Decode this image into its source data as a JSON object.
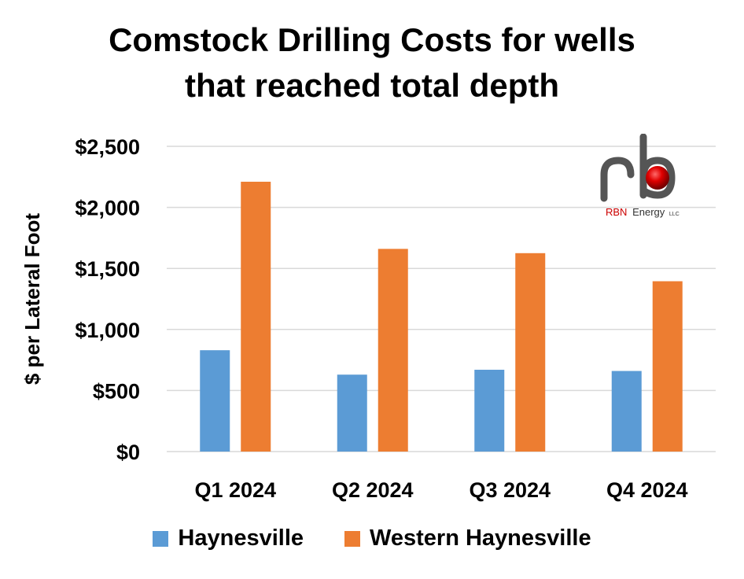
{
  "chart_data": {
    "type": "bar",
    "title_lines": [
      "Comstock Drilling Costs for wells",
      "that reached total depth"
    ],
    "xlabel": "",
    "ylabel": "$  per Lateral Foot",
    "categories": [
      "Q1 2024",
      "Q2 2024",
      "Q3 2024",
      "Q4 2024"
    ],
    "series": [
      {
        "name": "Haynesville",
        "color": "#5B9BD5",
        "values": [
          830,
          630,
          670,
          660
        ]
      },
      {
        "name": "Western Haynesville",
        "color": "#ED7D31",
        "values": [
          2210,
          1660,
          1625,
          1395
        ]
      }
    ],
    "ylim": [
      0,
      2500
    ],
    "yticks": [
      0,
      500,
      1000,
      1500,
      2000,
      2500
    ],
    "ytick_labels": [
      "$0",
      "$500",
      "$1,000",
      "$1,500",
      "$2,000",
      "$2,500"
    ],
    "grid": true,
    "legend_position": "bottom"
  },
  "logo": {
    "name": "RBN Energy",
    "text_main": "RBN",
    "text_secondary": "Energy",
    "text_suffix": "LLC"
  }
}
